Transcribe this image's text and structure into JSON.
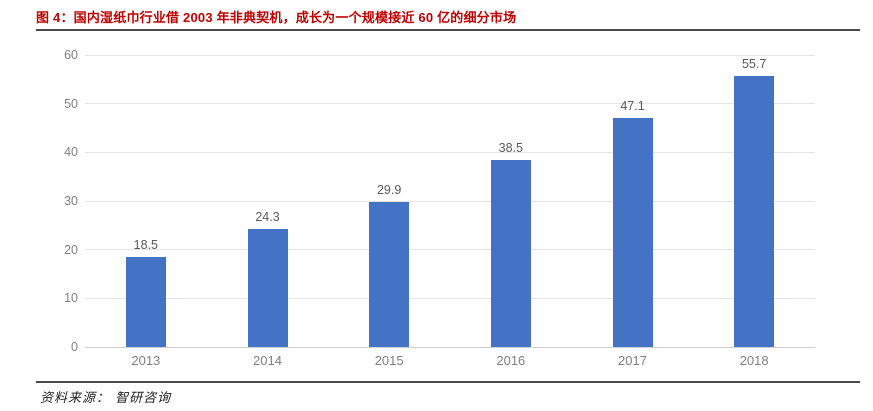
{
  "header": {
    "title": "图 4：国内湿纸巾行业借 2003 年非典契机，成长为一个规模接近 60 亿的细分市场"
  },
  "footer": {
    "source_label": "资料来源： 智研咨询"
  },
  "colors": {
    "title_red": "#C00000",
    "bar_blue": "#4472C4",
    "gridline": "#E5E5E5",
    "axis_label_gray": "#808080",
    "data_label_gray": "#595959",
    "rule_dark": "#4A4A4A"
  },
  "chart_data": {
    "type": "bar",
    "categories": [
      "2013",
      "2014",
      "2015",
      "2016",
      "2017",
      "2018"
    ],
    "values": [
      18.5,
      24.3,
      29.9,
      38.5,
      47.1,
      55.7
    ],
    "title": "",
    "xlabel": "",
    "ylabel": "",
    "ylim": [
      0,
      60
    ],
    "ytick_step": 10,
    "yticks": [
      0,
      10,
      20,
      30,
      40,
      50,
      60
    ],
    "grid": true,
    "data_labels": true,
    "legend": "none",
    "bar_color": "#4472C4"
  }
}
